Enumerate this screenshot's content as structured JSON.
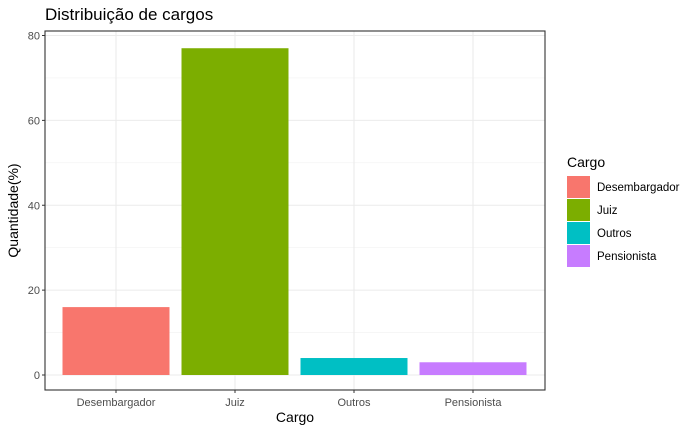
{
  "chart_data": {
    "type": "bar",
    "title": "Distribuição de cargos",
    "xlabel": "Cargo",
    "ylabel": "Quantidade(%)",
    "categories": [
      "Desembargador",
      "Juiz",
      "Outros",
      "Pensionista"
    ],
    "values": [
      16,
      77,
      4,
      3
    ],
    "colors": [
      "#F8766D",
      "#7CAE00",
      "#00BFC4",
      "#C77CFF"
    ],
    "ylim": [
      0,
      80
    ],
    "yticks": [
      0,
      20,
      40,
      60,
      80
    ],
    "grid": true,
    "legend": {
      "title": "Cargo",
      "placement": "right",
      "entries": [
        "Desembargador",
        "Juiz",
        "Outros",
        "Pensionista"
      ]
    }
  }
}
